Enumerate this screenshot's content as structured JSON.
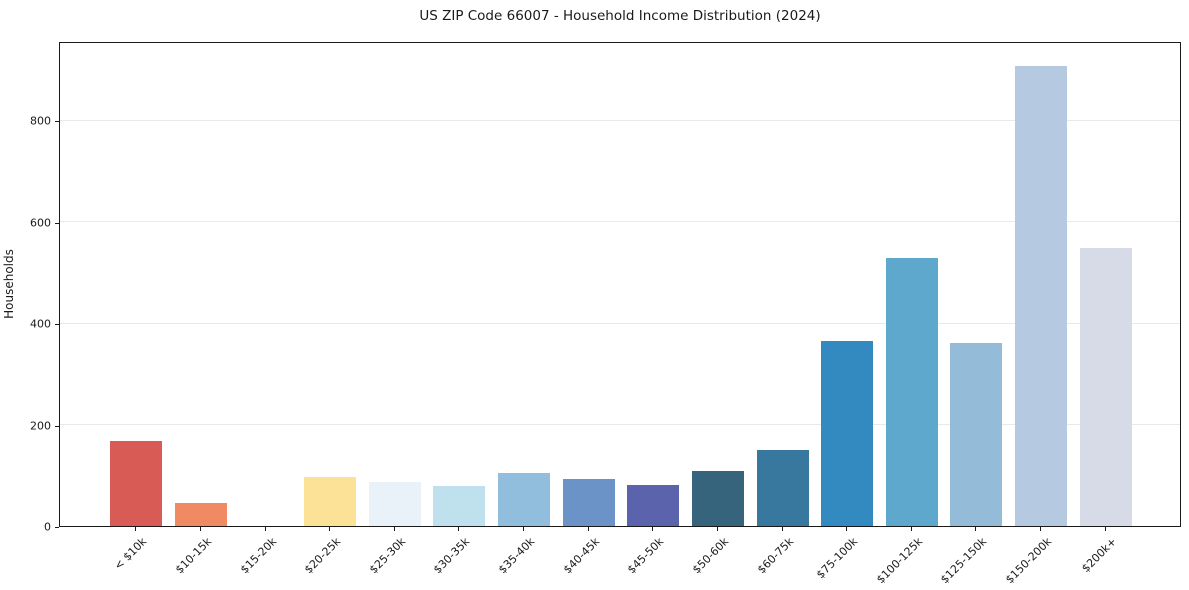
{
  "chart_data": {
    "type": "bar",
    "title": "US ZIP Code 66007 - Household Income Distribution (2024)",
    "xlabel": "",
    "ylabel": "Households",
    "categories": [
      "< $10k",
      "$10-15k",
      "$15-20k",
      "$20-25k",
      "$25-30k",
      "$30-35k",
      "$35-40k",
      "$40-45k",
      "$45-50k",
      "$50-60k",
      "$60-75k",
      "$75-100k",
      "$100-125k",
      "$125-150k",
      "$150-200k",
      "$200k+"
    ],
    "values": [
      168,
      46,
      0,
      97,
      87,
      78,
      105,
      93,
      81,
      108,
      150,
      365,
      529,
      360,
      907,
      548
    ],
    "bar_colors": [
      "#d85c55",
      "#f08a63",
      "#fdeaa8",
      "#fce297",
      "#e8f2f8",
      "#bfe1ee",
      "#92bedd",
      "#6b93c8",
      "#5c63ad",
      "#35647c",
      "#38789e",
      "#338ac0",
      "#5ea8cd",
      "#94bbd8",
      "#b5c9e0",
      "#d7dae7"
    ],
    "ylim": [
      0,
      956
    ],
    "yticks": [
      0,
      200,
      400,
      600,
      800
    ],
    "grid": "horizontal",
    "gridline_color": "#e9e9e9",
    "legend": "none",
    "text_color": "#1a1a1a"
  }
}
